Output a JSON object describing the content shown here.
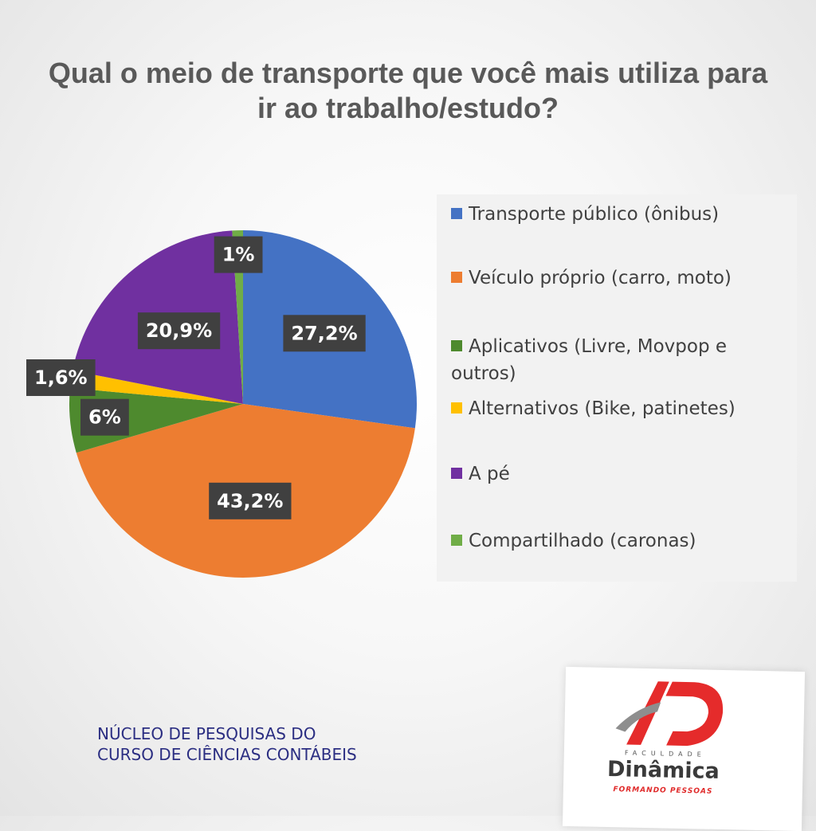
{
  "chart_data": {
    "type": "pie",
    "title": "Qual o meio de transporte que você mais utiliza para ir ao trabalho/estudo?",
    "categories": [
      "Transporte público (ônibus)",
      "Veículo próprio (carro, moto)",
      "Aplicativos (Livre, Movpop e outros)",
      "Alternativos (Bike, patinetes)",
      "A pé",
      "Compartilhado (caronas)"
    ],
    "values": [
      27.2,
      43.2,
      6,
      1.6,
      20.9,
      1
    ],
    "value_labels": [
      "27,2%",
      "43,2%",
      "6%",
      "1,6%",
      "20,9%",
      "1%"
    ],
    "colors": [
      "#4472c4",
      "#ed7d31",
      "#4e8a2e",
      "#ffc000",
      "#7030a0",
      "#70ad47"
    ],
    "legend_position": "right"
  },
  "footer": {
    "line1": "NÚCLEO DE PESQUISAS DO",
    "line2": "CURSO DE CIÊNCIAS CONTÁBEIS"
  },
  "logo": {
    "faculdade": "FACULDADE",
    "name": "Dinâmica",
    "slogan": "FORMANDO PESSOAS"
  }
}
